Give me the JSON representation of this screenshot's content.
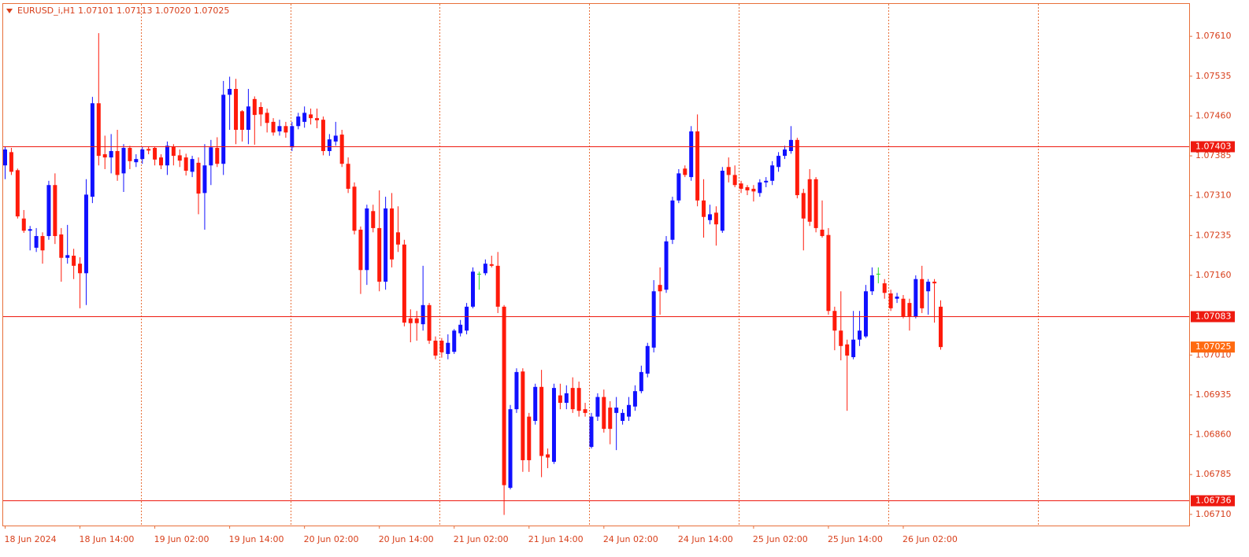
{
  "chart_data": {
    "type": "candlestick",
    "title": "EURUSD_i,H1  1.07101 1.07113 1.07020 1.07025",
    "up_color": "#1010ff",
    "down_color": "#ff1a0a",
    "doji_color": "#22dd22",
    "level_color": "#ee1a10",
    "bid_color": "#ff6a10",
    "ylim": [
      1.06689,
      1.07671
    ],
    "yticks": [
      {
        "value": 1.0761,
        "label": "1.07610"
      },
      1.07535,
      {
        "value": 1.0746,
        "label": "1.07460"
      },
      1.07385,
      {
        "value": 1.0731,
        "label": "1.07310"
      },
      1.07235,
      {
        "value": 1.0716,
        "label": "1.07160"
      },
      {
        "value": 1.0701,
        "label": "1.07010"
      },
      1.06935,
      {
        "value": 1.0686,
        "label": "1.06860"
      },
      1.06785,
      {
        "value": 1.0671,
        "label": "1.06710"
      }
    ],
    "levels": [
      1.07403,
      1.07083,
      1.06736
    ],
    "bid": 1.07025,
    "categories": [
      "18 Jun 2024",
      null,
      null,
      null,
      null,
      null,
      null,
      null,
      null,
      null,
      null,
      null,
      "18 Jun 14:00",
      null,
      null,
      null,
      null,
      null,
      null,
      null,
      null,
      null,
      null,
      null,
      "19 Jun 02:00",
      null,
      null,
      null,
      null,
      null,
      null,
      null,
      null,
      null,
      null,
      null,
      "19 Jun 14:00",
      null,
      null,
      null,
      null,
      null,
      null,
      null,
      null,
      null,
      null,
      null,
      "20 Jun 02:00",
      null,
      null,
      null,
      null,
      null,
      null,
      null,
      null,
      null,
      null,
      null,
      "20 Jun 14:00",
      null,
      null,
      null,
      null,
      null,
      null,
      null,
      null,
      null,
      null,
      null,
      "21 Jun 02:00",
      null,
      null,
      null,
      null,
      null,
      null,
      null,
      null,
      null,
      null,
      null,
      "21 Jun 14:00",
      null,
      null,
      null,
      null,
      null,
      null,
      null,
      null,
      null,
      null,
      null,
      "24 Jun 02:00",
      null,
      null,
      null,
      null,
      null,
      null,
      null,
      null,
      null,
      null,
      null,
      "24 Jun 14:00",
      null,
      null,
      null,
      null,
      null,
      null,
      null,
      null,
      null,
      null,
      null,
      "25 Jun 02:00",
      null,
      null,
      null,
      null,
      null,
      null,
      null,
      null,
      null,
      null,
      null,
      "25 Jun 14:00",
      null,
      null,
      null,
      null,
      null,
      null,
      null,
      null,
      null,
      null,
      null,
      "26 Jun 02:00",
      null,
      null,
      null,
      null,
      null,
      null
    ],
    "ohlc": [
      [
        1.07367,
        1.07403,
        1.07341,
        1.07397
      ],
      [
        1.07392,
        1.074,
        1.07349,
        1.07355
      ],
      [
        1.07358,
        1.07361,
        1.07267,
        1.07271
      ],
      [
        1.07267,
        1.07283,
        1.0724,
        1.07244
      ],
      [
        1.07244,
        1.07253,
        1.07207,
        1.07247
      ],
      [
        1.07212,
        1.07249,
        1.07204,
        1.07234
      ],
      [
        1.07234,
        1.07241,
        1.07182,
        1.07207
      ],
      [
        1.07234,
        1.07338,
        1.07227,
        1.0733
      ],
      [
        1.0733,
        1.07352,
        1.07219,
        1.07234
      ],
      [
        1.07237,
        1.07249,
        1.07148,
        1.07193
      ],
      [
        1.07193,
        1.07255,
        1.07182,
        1.07198
      ],
      [
        1.07197,
        1.0721,
        1.07153,
        1.07178
      ],
      [
        1.07182,
        1.07194,
        1.07098,
        1.07164
      ],
      [
        1.07164,
        1.07341,
        1.07104,
        1.07312
      ],
      [
        1.07308,
        1.07496,
        1.07296,
        1.07484
      ],
      [
        1.07484,
        1.07616,
        1.07367,
        1.07385
      ],
      [
        1.07388,
        1.07423,
        1.0736,
        1.07382
      ],
      [
        1.07382,
        1.07426,
        1.07352,
        1.07394
      ],
      [
        1.07394,
        1.07434,
        1.07338,
        1.07349
      ],
      [
        1.07352,
        1.07407,
        1.07317,
        1.074
      ],
      [
        1.074,
        1.07404,
        1.0736,
        1.07375
      ],
      [
        1.07373,
        1.07388,
        1.07364,
        1.07379
      ],
      [
        1.07379,
        1.07403,
        1.0737,
        1.07397
      ],
      [
        1.07398,
        1.07403,
        1.07388,
        1.07395
      ],
      [
        1.074,
        1.07403,
        1.07367,
        1.07378
      ],
      [
        1.07382,
        1.07388,
        1.0736,
        1.07367
      ],
      [
        1.07367,
        1.07412,
        1.07349,
        1.07404
      ],
      [
        1.07403,
        1.07407,
        1.07367,
        1.07385
      ],
      [
        1.07386,
        1.07397,
        1.07364,
        1.07376
      ],
      [
        1.07382,
        1.07389,
        1.07348,
        1.07357
      ],
      [
        1.07355,
        1.07385,
        1.07345,
        1.07379
      ],
      [
        1.07372,
        1.07382,
        1.07275,
        1.07314
      ],
      [
        1.07315,
        1.07407,
        1.07246,
        1.07367
      ],
      [
        1.07367,
        1.07415,
        1.0733,
        1.07401
      ],
      [
        1.074,
        1.0742,
        1.07364,
        1.0737
      ],
      [
        1.0737,
        1.07526,
        1.07349,
        1.075
      ],
      [
        1.075,
        1.07534,
        1.07434,
        1.07511
      ],
      [
        1.07511,
        1.0753,
        1.07407,
        1.07434
      ],
      [
        1.07469,
        1.07471,
        1.07412,
        1.07434
      ],
      [
        1.07434,
        1.07511,
        1.07407,
        1.07478
      ],
      [
        1.07492,
        1.07497,
        1.07406,
        1.07462
      ],
      [
        1.07477,
        1.07486,
        1.07441,
        1.07463
      ],
      [
        1.07466,
        1.07474,
        1.07429,
        1.07447
      ],
      [
        1.07449,
        1.07456,
        1.07423,
        1.07429
      ],
      [
        1.07431,
        1.07453,
        1.07423,
        1.07441
      ],
      [
        1.07441,
        1.07449,
        1.07419,
        1.07429
      ],
      [
        1.07401,
        1.07449,
        1.07394,
        1.07441
      ],
      [
        1.07441,
        1.07466,
        1.07435,
        1.07459
      ],
      [
        1.07449,
        1.07478,
        1.07438,
        1.07466
      ],
      [
        1.07463,
        1.07474,
        1.07444,
        1.07456
      ],
      [
        1.07456,
        1.07474,
        1.07437,
        1.07452
      ],
      [
        1.07453,
        1.07459,
        1.07386,
        1.07394
      ],
      [
        1.07394,
        1.07426,
        1.07385,
        1.07416
      ],
      [
        1.07412,
        1.07449,
        1.07404,
        1.07423
      ],
      [
        1.07425,
        1.07434,
        1.07364,
        1.0737
      ],
      [
        1.0737,
        1.07382,
        1.07315,
        1.07323
      ],
      [
        1.07327,
        1.07335,
        1.07237,
        1.07244
      ],
      [
        1.07246,
        1.07252,
        1.07125,
        1.0717
      ],
      [
        1.0717,
        1.07293,
        1.07142,
        1.07286
      ],
      [
        1.07281,
        1.07293,
        1.07241,
        1.07249
      ],
      [
        1.07249,
        1.0732,
        1.0713,
        1.07148
      ],
      [
        1.07148,
        1.07308,
        1.07133,
        1.07286
      ],
      [
        1.07286,
        1.07315,
        1.07175,
        1.0719
      ],
      [
        1.07241,
        1.0729,
        1.07204,
        1.07218
      ],
      [
        1.07218,
        1.07227,
        1.07064,
        1.07071
      ],
      [
        1.07079,
        1.07096,
        1.07034,
        1.0707
      ],
      [
        1.07079,
        1.07093,
        1.07037,
        1.0707
      ],
      [
        1.07068,
        1.07178,
        1.07056,
        1.07104
      ],
      [
        1.07104,
        1.07108,
        1.07031,
        1.07037
      ],
      [
        1.07037,
        1.07045,
        1.07002,
        1.07009
      ],
      [
        1.07037,
        1.07042,
        1.07005,
        1.07015
      ],
      [
        1.07012,
        1.07049,
        1.07002,
        1.07033
      ],
      [
        1.07016,
        1.07059,
        1.07012,
        1.07056
      ],
      [
        1.07051,
        1.07076,
        1.07045,
        1.07067
      ],
      [
        1.07056,
        1.07108,
        1.07049,
        1.07101
      ],
      [
        1.07101,
        1.07175,
        1.07098,
        1.07167
      ],
      [
        1.07163,
        1.07167,
        1.07133,
        1.07163
      ],
      [
        1.07164,
        1.0719,
        1.0716,
        1.07182
      ],
      [
        1.07181,
        1.07197,
        1.07175,
        1.07178
      ],
      [
        1.07178,
        1.07204,
        1.07089,
        1.07101
      ],
      [
        1.07101,
        1.07104,
        1.06709,
        1.06765
      ],
      [
        1.0676,
        1.06916,
        1.06757,
        1.06908
      ],
      [
        1.06908,
        1.06985,
        1.06901,
        1.06978
      ],
      [
        1.06979,
        1.06985,
        1.0679,
        1.06812
      ],
      [
        1.06894,
        1.06901,
        1.0679,
        1.06812
      ],
      [
        1.06886,
        1.06956,
        1.06879,
        1.0695
      ],
      [
        1.0695,
        1.06982,
        1.0678,
        1.0682
      ],
      [
        1.06823,
        1.06834,
        1.06797,
        1.06817
      ],
      [
        1.06809,
        1.06956,
        1.06805,
        1.06948
      ],
      [
        1.06934,
        1.06956,
        1.06908,
        1.0692
      ],
      [
        1.0692,
        1.06953,
        1.06908,
        1.06938
      ],
      [
        1.06948,
        1.06968,
        1.06901,
        1.06908
      ],
      [
        1.06948,
        1.0696,
        1.06894,
        1.06905
      ],
      [
        1.06908,
        1.0692,
        1.06894,
        1.06901
      ],
      [
        1.06837,
        1.06901,
        1.06834,
        1.06894
      ],
      [
        1.06894,
        1.06938,
        1.06886,
        1.06931
      ],
      [
        1.06931,
        1.06945,
        1.06864,
        1.06871
      ],
      [
        1.06911,
        1.06923,
        1.06842,
        1.06871
      ],
      [
        1.06901,
        1.06931,
        1.06831,
        1.06911
      ],
      [
        1.06886,
        1.06908,
        1.06879,
        1.06901
      ],
      [
        1.06894,
        1.06931,
        1.06886,
        1.06916
      ],
      [
        1.06913,
        1.06953,
        1.06905,
        1.06942
      ],
      [
        1.06942,
        1.0699,
        1.06938,
        1.06978
      ],
      [
        1.06975,
        1.07033,
        1.06968,
        1.07027
      ],
      [
        1.07024,
        1.07151,
        1.07015,
        1.0713
      ],
      [
        1.07142,
        1.07175,
        1.07086,
        1.0713
      ],
      [
        1.07133,
        1.07234,
        1.07127,
        1.07224
      ],
      [
        1.07227,
        1.07308,
        1.07219,
        1.07301
      ],
      [
        1.07301,
        1.0736,
        1.07296,
        1.07352
      ],
      [
        1.07361,
        1.07367,
        1.07345,
        1.07349
      ],
      [
        1.07345,
        1.07441,
        1.07338,
        1.07431
      ],
      [
        1.07431,
        1.07463,
        1.0729,
        1.07301
      ],
      [
        1.07301,
        1.07341,
        1.07231,
        1.0727
      ],
      [
        1.07264,
        1.07293,
        1.07256,
        1.07275
      ],
      [
        1.07278,
        1.0729,
        1.07216,
        1.07256
      ],
      [
        1.07244,
        1.07364,
        1.0724,
        1.07357
      ],
      [
        1.07364,
        1.07382,
        1.07335,
        1.07349
      ],
      [
        1.07349,
        1.07367,
        1.07326,
        1.0733
      ],
      [
        1.07333,
        1.07338,
        1.07315,
        1.07323
      ],
      [
        1.07326,
        1.0733,
        1.07311,
        1.0732
      ],
      [
        1.07323,
        1.0733,
        1.07299,
        1.07318
      ],
      [
        1.07315,
        1.07341,
        1.07308,
        1.07335
      ],
      [
        1.07335,
        1.07345,
        1.07326,
        1.07338
      ],
      [
        1.07338,
        1.07375,
        1.0733,
        1.07367
      ],
      [
        1.07364,
        1.07392,
        1.07355,
        1.07385
      ],
      [
        1.07385,
        1.07404,
        1.07379,
        1.07397
      ],
      [
        1.07394,
        1.07441,
        1.07389,
        1.07415
      ],
      [
        1.07415,
        1.07419,
        1.07305,
        1.07311
      ],
      [
        1.07315,
        1.07323,
        1.07207,
        1.07267
      ],
      [
        1.07341,
        1.0736,
        1.07253,
        1.07261
      ],
      [
        1.07341,
        1.07345,
        1.07241,
        1.07249
      ],
      [
        1.07246,
        1.07301,
        1.07231,
        1.07234
      ],
      [
        1.07236,
        1.07249,
        1.07086,
        1.07093
      ],
      [
        1.07093,
        1.07101,
        1.07019,
        1.07056
      ],
      [
        1.07056,
        1.0713,
        1.07,
        1.07027
      ],
      [
        1.0703,
        1.07039,
        1.06905,
        1.07009
      ],
      [
        1.07006,
        1.07093,
        1.07002,
        1.07039
      ],
      [
        1.07039,
        1.07093,
        1.07027,
        1.07056
      ],
      [
        1.07045,
        1.07142,
        1.07042,
        1.0713
      ],
      [
        1.0713,
        1.07175,
        1.07123,
        1.0716
      ],
      [
        1.07163,
        1.07175,
        1.07145,
        1.07163
      ],
      [
        1.07145,
        1.07153,
        1.07116,
        1.07127
      ],
      [
        1.07126,
        1.07133,
        1.07093,
        1.07098
      ],
      [
        1.07116,
        1.07127,
        1.07108,
        1.0712
      ],
      [
        1.07116,
        1.07123,
        1.07079,
        1.07083
      ],
      [
        1.07108,
        1.07116,
        1.07056,
        1.07083
      ],
      [
        1.07083,
        1.0716,
        1.07079,
        1.07153
      ],
      [
        1.07153,
        1.07178,
        1.07089,
        1.07098
      ],
      [
        1.0713,
        1.07153,
        1.07086,
        1.07148
      ],
      [
        1.07148,
        1.07153,
        1.07071,
        1.07145
      ],
      [
        1.07101,
        1.07113,
        1.0702,
        1.07025
      ]
    ]
  }
}
